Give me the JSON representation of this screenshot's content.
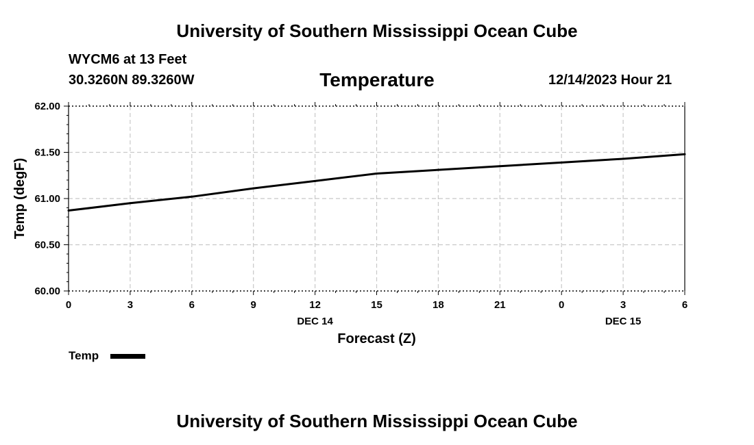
{
  "header": {
    "title": "University of Southern Mississippi Ocean Cube",
    "station": "WYCM6 at 13 Feet",
    "coords": "30.3260N  89.3260W",
    "date": "12/14/2023 Hour 21"
  },
  "footer": {
    "title": "University of Southern Mississippi Ocean Cube"
  },
  "chart_data": {
    "type": "line",
    "title": "Temperature",
    "xlabel": "Forecast (Z)",
    "ylabel": "Temp (degF)",
    "x_hours": [
      0,
      3,
      6,
      9,
      12,
      15,
      18,
      21,
      24,
      27,
      30
    ],
    "x_tick_labels": [
      "0",
      "3",
      "6",
      "9",
      "12",
      "15",
      "18",
      "21",
      "0",
      "3",
      "6"
    ],
    "date_labels": [
      {
        "label": "DEC 14",
        "at_hour": 12
      },
      {
        "label": "DEC 15",
        "at_hour": 27
      }
    ],
    "xlim": [
      0,
      30
    ],
    "ylim": [
      60.0,
      62.0
    ],
    "y_ticks": [
      60.0,
      60.5,
      61.0,
      61.5,
      62.0
    ],
    "y_tick_labels": [
      "60.00",
      "60.50",
      "61.00",
      "61.50",
      "62.00"
    ],
    "grid": true,
    "legend": "bottom-left",
    "series": [
      {
        "name": "Temp",
        "color": "#000000",
        "x": [
          0,
          3,
          6,
          9,
          12,
          15,
          18,
          21,
          24,
          27,
          30
        ],
        "values": [
          60.87,
          60.95,
          61.02,
          61.11,
          61.19,
          61.27,
          61.31,
          61.35,
          61.39,
          61.43,
          61.48
        ]
      }
    ]
  }
}
